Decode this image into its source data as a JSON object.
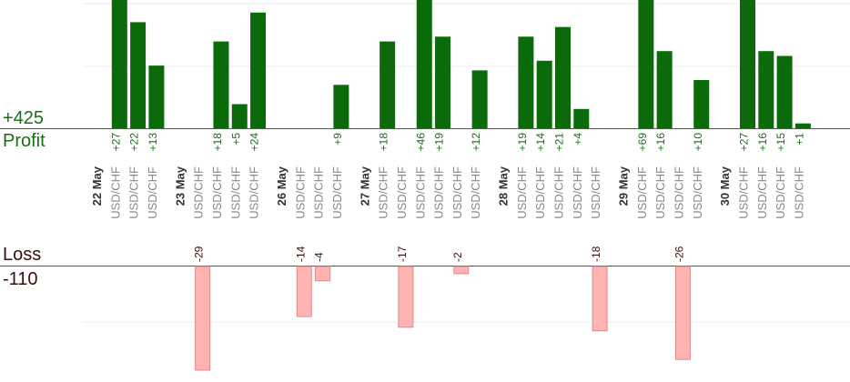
{
  "summary": {
    "profit_total": "+425",
    "profit_label": "Profit",
    "loss_label": "Loss",
    "loss_total": "-110"
  },
  "colors": {
    "profit_bar": "#0b6b0b",
    "profit_text": "#1a6e1a",
    "loss_bar": "#ffb3b3",
    "loss_text": "#3a0d0d",
    "axis": "#555555",
    "grid": "#ececec",
    "date_text": "#333333",
    "pair_text": "#888888"
  },
  "chart_data": {
    "type": "bar",
    "title": "",
    "xlabel": "",
    "ylabel": "",
    "grid": true,
    "profit_ylim": [
      0,
      27
    ],
    "loss_ylim": [
      -29,
      0
    ],
    "days": [
      {
        "date": "22 May",
        "trades": [
          {
            "pair": "USD/CHF",
            "value": 27
          },
          {
            "pair": "USD/CHF",
            "value": 22
          },
          {
            "pair": "USD/CHF",
            "value": 13
          }
        ]
      },
      {
        "date": "23 May",
        "trades": [
          {
            "pair": "USD/CHF",
            "value": -29
          },
          {
            "pair": "USD/CHF",
            "value": 18
          },
          {
            "pair": "USD/CHF",
            "value": 5
          },
          {
            "pair": "USD/CHF",
            "value": 24
          }
        ]
      },
      {
        "date": "26 May",
        "trades": [
          {
            "pair": "USD/CHF",
            "value": -14
          },
          {
            "pair": "USD/CHF",
            "value": -4
          },
          {
            "pair": "USD/CHF",
            "value": 9
          }
        ]
      },
      {
        "date": "27 May",
        "trades": [
          {
            "pair": "USD/CHF",
            "value": 18
          },
          {
            "pair": "USD/CHF",
            "value": -17
          },
          {
            "pair": "USD/CHF",
            "value": 46
          },
          {
            "pair": "USD/CHF",
            "value": 19
          },
          {
            "pair": "USD/CHF",
            "value": -2
          },
          {
            "pair": "USD/CHF",
            "value": 12
          }
        ]
      },
      {
        "date": "28 May",
        "trades": [
          {
            "pair": "USD/CHF",
            "value": 19
          },
          {
            "pair": "USD/CHF",
            "value": 14
          },
          {
            "pair": "USD/CHF",
            "value": 21
          },
          {
            "pair": "USD/CHF",
            "value": 4
          },
          {
            "pair": "USD/CHF",
            "value": -18
          }
        ]
      },
      {
        "date": "29 May",
        "trades": [
          {
            "pair": "USD/CHF",
            "value": 69
          },
          {
            "pair": "USD/CHF",
            "value": 16
          },
          {
            "pair": "USD/CHF",
            "value": -26
          },
          {
            "pair": "USD/CHF",
            "value": 10
          }
        ]
      },
      {
        "date": "30 May",
        "trades": [
          {
            "pair": "USD/CHF",
            "value": 27
          },
          {
            "pair": "USD/CHF",
            "value": 16
          },
          {
            "pair": "USD/CHF",
            "value": 15
          },
          {
            "pair": "USD/CHF",
            "value": 1
          }
        ]
      }
    ]
  }
}
